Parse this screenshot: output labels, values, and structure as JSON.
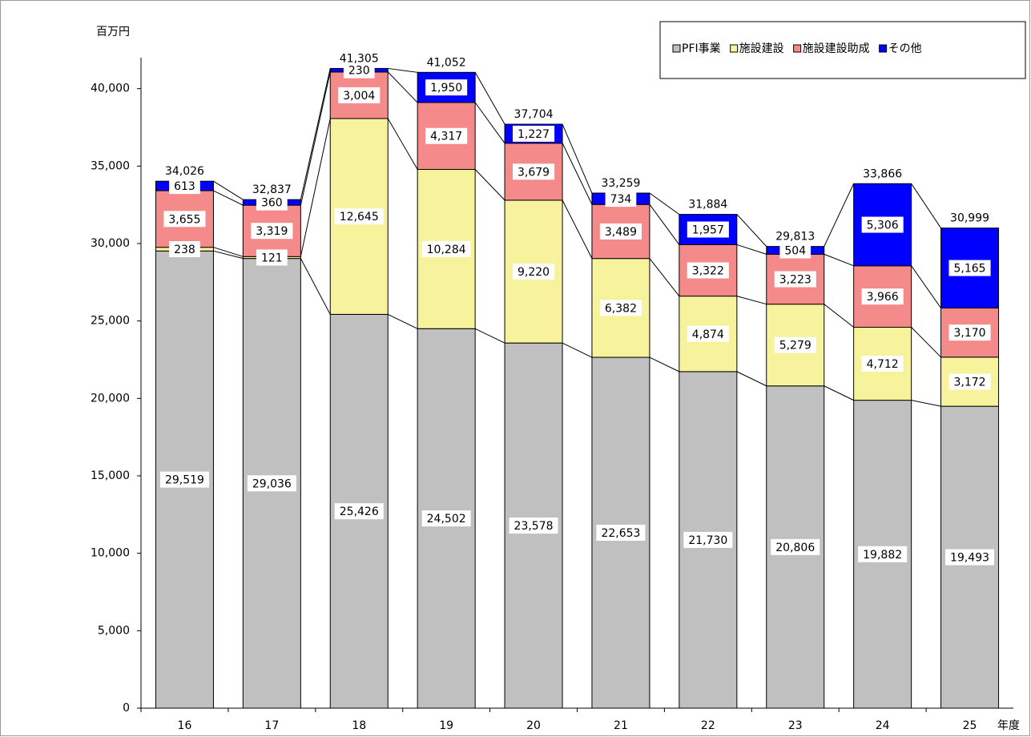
{
  "chart_data": {
    "type": "stacked_bar",
    "y_unit": "百万円",
    "x_label": "年度",
    "categories": [
      "16",
      "17",
      "18",
      "19",
      "20",
      "21",
      "22",
      "23",
      "24",
      "25"
    ],
    "series": [
      {
        "name": "PFI事業",
        "color": "#c0c0c0",
        "values": [
          29519,
          29036,
          25426,
          24502,
          23578,
          22653,
          21730,
          20806,
          19882,
          19493
        ],
        "value_labels": [
          "29,519",
          "29,036",
          "25,426",
          "24,502",
          "23,578",
          "22,653",
          "21,730",
          "20,806",
          "19,882",
          "19,493"
        ]
      },
      {
        "name": "施設建設",
        "color": "#f7f29c",
        "values": [
          238,
          121,
          12645,
          10284,
          9220,
          6382,
          4874,
          5279,
          4712,
          3172
        ],
        "value_labels": [
          "238",
          "121",
          "12,645",
          "10,284",
          "9,220",
          "6,382",
          "4,874",
          "5,279",
          "4,712",
          "3,172"
        ]
      },
      {
        "name": "施設建設助成",
        "color": "#f58a8a",
        "values": [
          3655,
          3319,
          3004,
          4317,
          3679,
          3489,
          3322,
          3223,
          3966,
          3170
        ],
        "value_labels": [
          "3,655",
          "3,319",
          "3,004",
          "4,317",
          "3,679",
          "3,489",
          "3,322",
          "3,223",
          "3,966",
          "3,170"
        ]
      },
      {
        "name": "その他",
        "color": "#0000ff",
        "values": [
          613,
          360,
          230,
          1950,
          1227,
          734,
          1957,
          504,
          5306,
          5165
        ],
        "value_labels": [
          "613",
          "360",
          "230",
          "1,950",
          "1,227",
          "734",
          "1,957",
          "504",
          "5,306",
          "5,165"
        ]
      }
    ],
    "totals": [
      34026,
      32837,
      41305,
      41052,
      37704,
      33259,
      31884,
      29813,
      33866,
      30999
    ],
    "total_labels": [
      "34,026",
      "32,837",
      "41,305",
      "41,052",
      "37,704",
      "33,259",
      "31,884",
      "29,813",
      "33,866",
      "30,999"
    ],
    "ylim": [
      0,
      42000
    ],
    "yticks": [
      0,
      {
        "value": 5000,
        "label": "5,000"
      },
      {
        "value": 10000,
        "label": "10,000"
      },
      {
        "value": 15000,
        "label": "15,000"
      },
      {
        "value": 20000,
        "label": "20,000"
      },
      {
        "value": 25000,
        "label": "25,000"
      },
      {
        "value": 30000,
        "label": "30,000"
      },
      {
        "value": 35000,
        "label": "35,000"
      },
      {
        "value": 40000,
        "label": "40,000"
      }
    ],
    "legend": "top-right"
  }
}
